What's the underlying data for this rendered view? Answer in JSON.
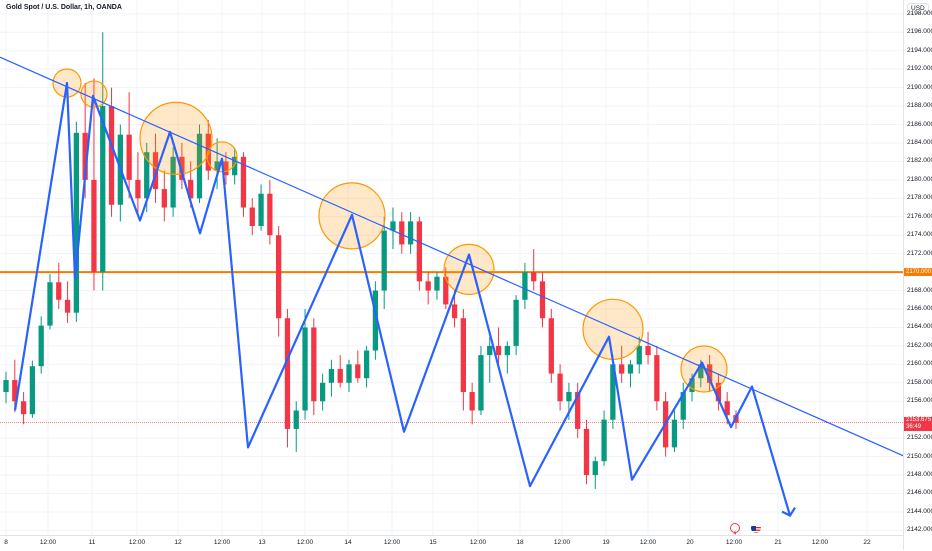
{
  "header": {
    "title": "Gold Spot / U.S. Dollar, 1h, OANDA"
  },
  "price_axis": {
    "currency": "USD",
    "ticks": [
      "2198.000",
      "2196.000",
      "2194.000",
      "2192.000",
      "2190.000",
      "2188.000",
      "2186.000",
      "2184.000",
      "2182.000",
      "2180.000",
      "2178.000",
      "2176.000",
      "2174.000",
      "2172.000",
      "2170.000",
      "2168.000",
      "2166.000",
      "2164.000",
      "2162.000",
      "2160.000",
      "2158.000",
      "2156.000",
      "2154.000",
      "2152.000",
      "2150.000",
      "2148.000",
      "2146.000",
      "2144.000",
      "2142.000"
    ],
    "hline_label": "2170.000",
    "last_price": "2153.675",
    "countdown": "36:49"
  },
  "time_axis": {
    "labels": [
      "8",
      "12:00",
      "11",
      "12:00",
      "12",
      "12:00",
      "13",
      "12:00",
      "14",
      "12:00",
      "15",
      "12:00",
      "18",
      "12:00",
      "19",
      "12:00",
      "20",
      "12:00",
      "21",
      "12:00",
      "22"
    ]
  },
  "chart_data": {
    "type": "candlestick",
    "symbol": "Gold Spot / U.S. Dollar",
    "interval": "1h",
    "source": "OANDA",
    "ylim": [
      2141.5,
      2199.5
    ],
    "horizontal_line": 2170.0,
    "last_price": 2153.675,
    "trendline": [
      [
        0,
        2193.3
      ],
      [
        903,
        2150.1
      ]
    ],
    "zigzag": [
      [
        15,
        2155.0
      ],
      [
        67,
        2190.5
      ],
      [
        75,
        2169.3
      ],
      [
        93,
        2189.1
      ],
      [
        140,
        2175.6
      ],
      [
        170,
        2185.2
      ],
      [
        200,
        2174.2
      ],
      [
        222,
        2182.3
      ],
      [
        248,
        2151.0
      ],
      [
        352,
        2176.2
      ],
      [
        404,
        2152.7
      ],
      [
        469,
        2171.9
      ],
      [
        530,
        2146.8
      ],
      [
        609,
        2163.0
      ],
      [
        632,
        2147.5
      ],
      [
        702,
        2160.2
      ],
      [
        731,
        2153.2
      ],
      [
        752,
        2157.6
      ],
      [
        790,
        2143.6
      ]
    ],
    "arrowhead_at": [
      790,
      2143.6
    ],
    "circles": [
      [
        67,
        2190.5,
        14
      ],
      [
        94,
        2189.3,
        13
      ],
      [
        176,
        2184.5,
        36
      ],
      [
        222,
        2182.5,
        15
      ],
      [
        352,
        2176.1,
        33
      ],
      [
        469,
        2170.3,
        25
      ],
      [
        613,
        2163.8,
        30
      ],
      [
        704,
        2159.5,
        23
      ]
    ],
    "candles": [
      [
        2157.0,
        2159.2,
        2155.8,
        2158.3
      ],
      [
        2158.3,
        2160.5,
        2154.8,
        2156.0
      ],
      [
        2156.0,
        2157.0,
        2153.5,
        2154.6
      ],
      [
        2154.6,
        2160.4,
        2154.2,
        2159.8
      ],
      [
        2159.8,
        2165.2,
        2159.0,
        2164.2
      ],
      [
        2164.2,
        2169.8,
        2163.8,
        2168.9
      ],
      [
        2168.9,
        2171.0,
        2166.0,
        2167.0
      ],
      [
        2167.0,
        2169.0,
        2164.5,
        2165.6
      ],
      [
        2165.6,
        2186.3,
        2164.6,
        2185.1
      ],
      [
        2185.1,
        2190.5,
        2178.0,
        2180.0
      ],
      [
        2180.0,
        2191.0,
        2168.0,
        2170.0
      ],
      [
        2170.0,
        2196.0,
        2168.0,
        2188.0
      ],
      [
        2188.0,
        2190.0,
        2176.0,
        2177.3
      ],
      [
        2177.3,
        2186.0,
        2175.5,
        2184.9
      ],
      [
        2184.9,
        2189.5,
        2178.0,
        2180.0
      ],
      [
        2180.0,
        2183.0,
        2176.0,
        2178.0
      ],
      [
        2178.0,
        2184.0,
        2176.5,
        2183.0
      ],
      [
        2183.0,
        2185.0,
        2177.5,
        2179.0
      ],
      [
        2179.0,
        2181.0,
        2175.5,
        2177.0
      ],
      [
        2177.0,
        2183.5,
        2176.0,
        2182.5
      ],
      [
        2182.5,
        2184.0,
        2179.0,
        2180.0
      ],
      [
        2180.0,
        2182.0,
        2177.0,
        2178.0
      ],
      [
        2178.0,
        2186.0,
        2177.5,
        2185.0
      ],
      [
        2185.0,
        2186.5,
        2180.0,
        2181.0
      ],
      [
        2181.0,
        2184.5,
        2179.0,
        2182.0
      ],
      [
        2182.0,
        2183.0,
        2179.5,
        2180.5
      ],
      [
        2180.5,
        2183.5,
        2179.5,
        2182.5
      ],
      [
        2182.5,
        2183.0,
        2176.0,
        2177.0
      ],
      [
        2177.0,
        2178.0,
        2174.0,
        2175.0
      ],
      [
        2175.0,
        2179.5,
        2174.5,
        2178.5
      ],
      [
        2178.5,
        2180.0,
        2173.0,
        2174.0
      ],
      [
        2174.0,
        2175.0,
        2163.0,
        2165.0
      ],
      [
        2165.0,
        2166.0,
        2151.0,
        2153.0
      ],
      [
        2153.0,
        2156.0,
        2150.5,
        2155.0
      ],
      [
        2155.0,
        2166.0,
        2154.0,
        2164.0
      ],
      [
        2164.0,
        2165.0,
        2154.5,
        2156.0
      ],
      [
        2156.0,
        2159.0,
        2155.0,
        2158.0
      ],
      [
        2158.0,
        2160.5,
        2156.5,
        2159.5
      ],
      [
        2159.5,
        2161.0,
        2157.5,
        2158.0
      ],
      [
        2158.0,
        2160.5,
        2157.0,
        2160.0
      ],
      [
        2160.0,
        2161.5,
        2158.0,
        2158.5
      ],
      [
        2158.5,
        2162.0,
        2157.5,
        2161.5
      ],
      [
        2161.5,
        2169.0,
        2160.5,
        2168.0
      ],
      [
        2168.0,
        2176.0,
        2166.0,
        2174.5
      ],
      [
        2174.5,
        2177.0,
        2172.5,
        2175.5
      ],
      [
        2175.5,
        2176.5,
        2172.0,
        2173.0
      ],
      [
        2173.0,
        2176.5,
        2172.0,
        2175.5
      ],
      [
        2175.5,
        2176.0,
        2168.0,
        2169.0
      ],
      [
        2169.0,
        2170.0,
        2166.5,
        2168.0
      ],
      [
        2168.0,
        2170.0,
        2167.0,
        2169.5
      ],
      [
        2169.5,
        2170.5,
        2166.0,
        2166.5
      ],
      [
        2166.5,
        2168.0,
        2164.0,
        2165.0
      ],
      [
        2165.0,
        2166.0,
        2155.0,
        2157.0
      ],
      [
        2157.0,
        2158.0,
        2153.5,
        2155.0
      ],
      [
        2155.0,
        2162.0,
        2154.5,
        2161.0
      ],
      [
        2161.0,
        2163.0,
        2158.0,
        2162.0
      ],
      [
        2162.0,
        2164.0,
        2160.0,
        2161.0
      ],
      [
        2161.0,
        2162.5,
        2159.0,
        2162.0
      ],
      [
        2162.0,
        2167.5,
        2161.0,
        2167.0
      ],
      [
        2167.0,
        2171.0,
        2166.0,
        2170.0
      ],
      [
        2170.0,
        2172.5,
        2168.0,
        2169.0
      ],
      [
        2169.0,
        2170.0,
        2164.0,
        2165.0
      ],
      [
        2165.0,
        2166.0,
        2158.0,
        2159.0
      ],
      [
        2159.0,
        2160.0,
        2155.0,
        2156.0
      ],
      [
        2156.0,
        2158.0,
        2154.0,
        2157.0
      ],
      [
        2157.0,
        2158.0,
        2152.0,
        2153.0
      ],
      [
        2153.0,
        2154.0,
        2147.0,
        2148.0
      ],
      [
        2148.0,
        2150.0,
        2146.5,
        2149.5
      ],
      [
        2149.5,
        2155.0,
        2149.0,
        2154.0
      ],
      [
        2154.0,
        2161.0,
        2153.0,
        2160.0
      ],
      [
        2160.0,
        2162.0,
        2158.0,
        2159.0
      ],
      [
        2159.0,
        2160.5,
        2157.5,
        2160.0
      ],
      [
        2160.0,
        2163.0,
        2159.0,
        2162.0
      ],
      [
        2162.0,
        2163.5,
        2160.0,
        2161.0
      ],
      [
        2161.0,
        2162.0,
        2155.0,
        2156.0
      ],
      [
        2156.0,
        2157.0,
        2150.0,
        2151.0
      ],
      [
        2151.0,
        2155.0,
        2150.5,
        2154.0
      ],
      [
        2154.0,
        2158.0,
        2153.0,
        2157.0
      ],
      [
        2157.0,
        2159.0,
        2156.0,
        2158.5
      ],
      [
        2158.5,
        2160.5,
        2157.5,
        2160.0
      ],
      [
        2160.0,
        2161.0,
        2157.0,
        2158.0
      ],
      [
        2158.0,
        2159.0,
        2155.0,
        2156.0
      ],
      [
        2156.0,
        2157.0,
        2153.5,
        2154.5
      ],
      [
        2154.5,
        2155.0,
        2153.0,
        2153.675
      ]
    ]
  }
}
